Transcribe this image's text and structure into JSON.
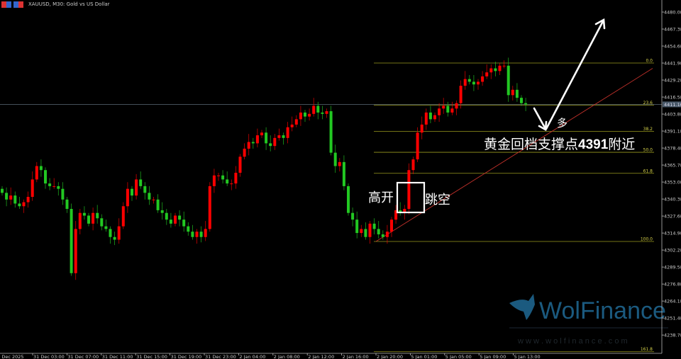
{
  "header": {
    "symbol_title": "XAUUSD, M30:  Gold vs US Dollar",
    "icons": [
      "chart-flag-icon",
      "chart-properties-icon"
    ]
  },
  "chart_data": {
    "type": "candlestick",
    "symbol": "XAUUSD",
    "timeframe": "M30",
    "up_color": "#ff0000",
    "down_color": "#22c822",
    "ylim": [
      4226,
      4488
    ],
    "y_ticks": [
      "4480.08",
      "4467.38",
      "4454.68",
      "4441.98",
      "4429.28",
      "4416.58",
      "4403.88",
      "4391.18",
      "4378.48",
      "4365.78",
      "4353.08",
      "4340.38",
      "4327.68",
      "4314.98",
      "4302.28",
      "4289.58",
      "4276.88",
      "4264.18",
      "4251.48",
      "4238.78"
    ],
    "x_ticks": [
      "30 Dec 2025",
      "31 Dec 03:00",
      "31 Dec 07:00",
      "31 Dec 11:00",
      "31 Dec 15:00",
      "31 Dec 19:00",
      "31 Dec 23:00",
      "2 Jan 04:00",
      "2 Jan 08:00",
      "2 Jan 12:00",
      "2 Jan 16:00",
      "2 Jan 20:00",
      "5 Jan 01:00",
      "5 Jan 05:00",
      "5 Jan 09:00",
      "5 Jan 13:00"
    ],
    "current_price": "4411.10",
    "closes": [
      4345,
      4340,
      4343,
      4337,
      4335,
      4338,
      4342,
      4355,
      4365,
      4362,
      4352,
      4350,
      4350,
      4348,
      4340,
      4333,
      4285,
      4318,
      4330,
      4328,
      4322,
      4330,
      4326,
      4320,
      4318,
      4312,
      4310,
      4320,
      4335,
      4348,
      4343,
      4355,
      4350,
      4345,
      4340,
      4340,
      4332,
      4330,
      4325,
      4322,
      4328,
      4325,
      4320,
      4316,
      4312,
      4316,
      4312,
      4318,
      4350,
      4358,
      4358,
      4355,
      4352,
      4352,
      4360,
      4372,
      4378,
      4383,
      4382,
      4388,
      4390,
      4382,
      4380,
      4386,
      4388,
      4386,
      4394,
      4396,
      4400,
      4405,
      4402,
      4404,
      4410,
      4405,
      4404,
      4406,
      4375,
      4365,
      4368,
      4350,
      4330,
      4325,
      4315,
      4318,
      4312,
      4322,
      4318,
      4314,
      4312,
      4316,
      4325,
      4332,
      4330,
      4333,
      4362,
      4370,
      4390,
      4396,
      4405,
      4400,
      4403,
      4408,
      4410,
      4405,
      4408,
      4412,
      4425,
      4430,
      4428,
      4426,
      4428,
      4432,
      4435,
      4438,
      4436,
      4440,
      4440,
      4418,
      4422,
      4416,
      4412,
      4411
    ],
    "fibonacci": {
      "color": "#9a9a1e",
      "levels": [
        {
          "label": "0.0",
          "price": 4441.98
        },
        {
          "label": "23.6",
          "price": 4410.5
        },
        {
          "label": "38.2",
          "price": 4391.0
        },
        {
          "label": "50.0",
          "price": 4375.3
        },
        {
          "label": "61.8",
          "price": 4359.6
        },
        {
          "label": "100.0",
          "price": 4308.7
        },
        {
          "label": "161.8",
          "price": 4226.3
        }
      ]
    },
    "trendline": {
      "color": "#c0302a",
      "from_price": 4308.7,
      "to_price": 4438
    }
  },
  "annotations": {
    "gap_left": "高开",
    "gap_right": "跳空",
    "long": "多",
    "support_prefix": "黄金回档支撑点",
    "support_value": "4391",
    "support_suffix": "附近"
  },
  "watermark": {
    "brand": "WolFinance",
    "url": "w w w . w o l f i n a n c e . c o m",
    "color": "#1d5f86"
  }
}
